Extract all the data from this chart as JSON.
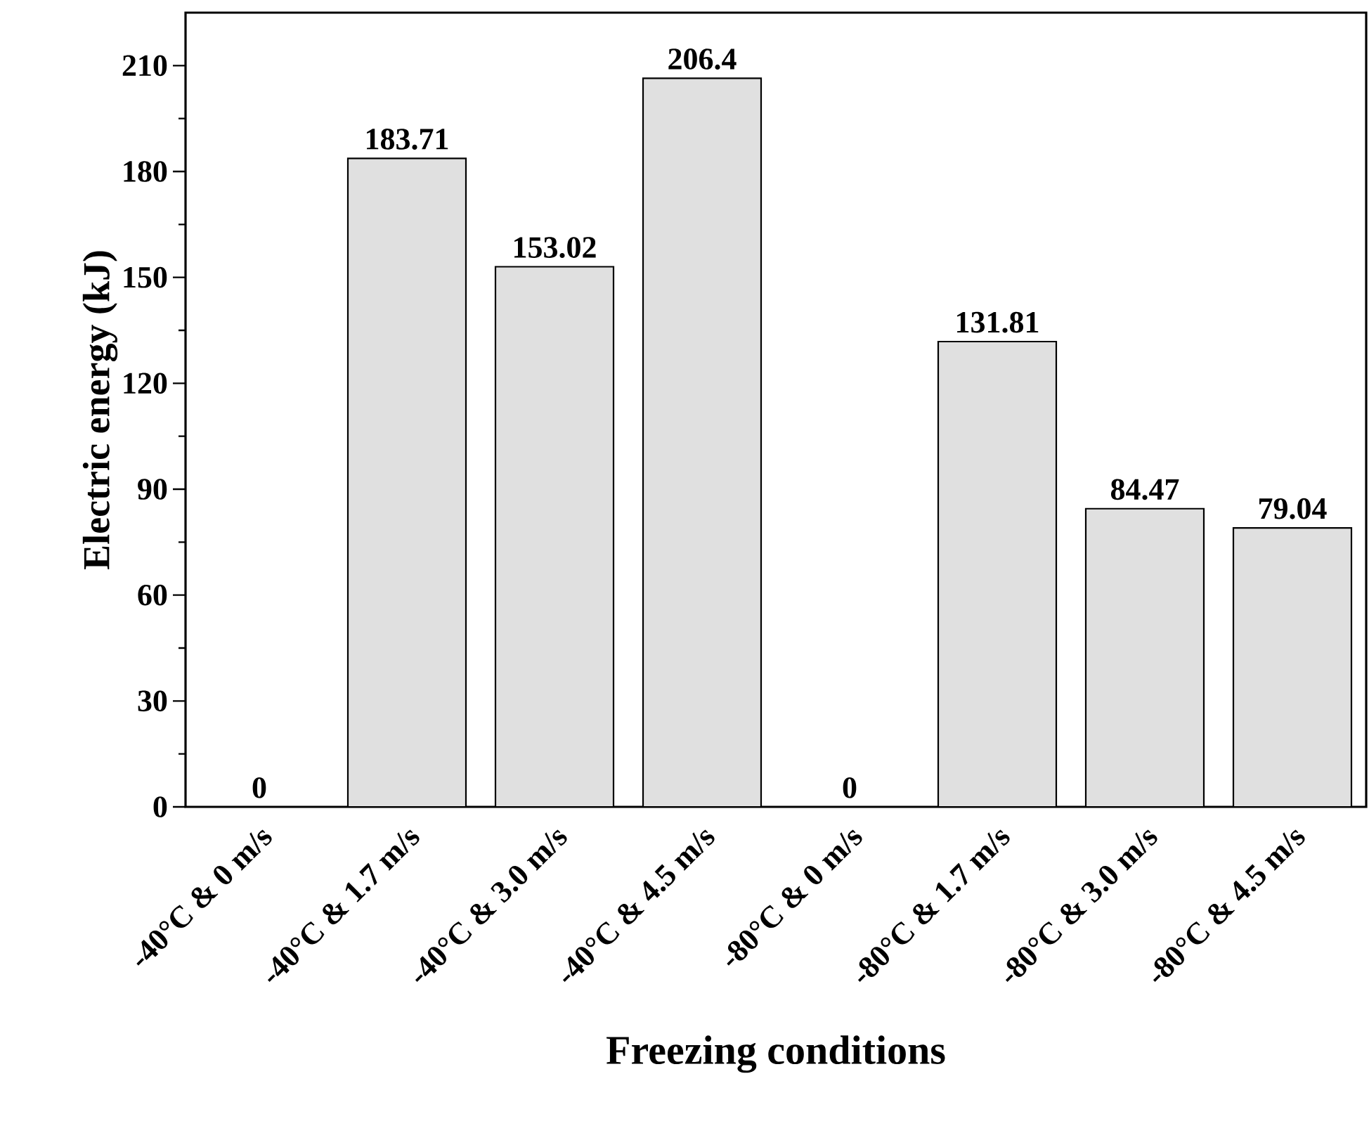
{
  "chart_data": {
    "type": "bar",
    "xlabel": "Freezing conditions",
    "ylabel": "Electric energy (kJ)",
    "categories": [
      "-40°C & 0 m/s",
      "-40°C & 1.7 m/s",
      "-40°C & 3.0 m/s",
      "-40°C & 4.5 m/s",
      "-80°C & 0 m/s",
      "-80°C & 1.7 m/s",
      "-80°C & 3.0 m/s",
      "-80°C & 4.5 m/s"
    ],
    "values": [
      0,
      183.71,
      153.02,
      206.4,
      0,
      131.81,
      84.47,
      79.04
    ],
    "color": "#e0e0e0",
    "ylim": [
      0,
      225
    ],
    "yticks": [
      0,
      30,
      60,
      90,
      120,
      150,
      180,
      210
    ],
    "data_labels": true
  }
}
